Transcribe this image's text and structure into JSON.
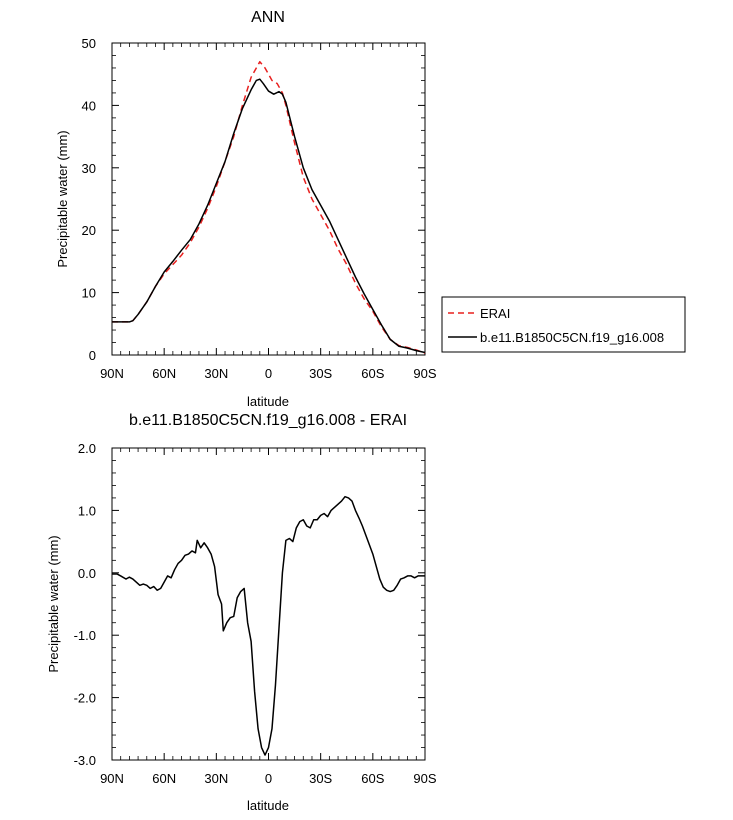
{
  "chart_data": [
    {
      "type": "line",
      "title": "ANN",
      "xlabel": "latitude",
      "ylabel": "Precipitable water (mm)",
      "xlim": [
        90,
        -90
      ],
      "ylim": [
        0,
        50
      ],
      "x_ticks": [
        90,
        60,
        30,
        0,
        -30,
        -60,
        -90
      ],
      "x_tick_labels": [
        "90N",
        "60N",
        "30N",
        "0",
        "30S",
        "60S",
        "90S"
      ],
      "y_ticks": [
        0,
        10,
        20,
        30,
        40,
        50
      ],
      "y_tick_labels": [
        "0",
        "10",
        "20",
        "30",
        "40",
        "50"
      ],
      "grid": false,
      "legend_position": "right",
      "series": [
        {
          "name": "ERAI",
          "color": "#e8201f",
          "dash": "dashed",
          "x": [
            90,
            85,
            80,
            78,
            75,
            70,
            65,
            60,
            55,
            50,
            45,
            40,
            35,
            30,
            25,
            20,
            15,
            10,
            5,
            2,
            0,
            -2,
            -5,
            -8,
            -10,
            -15,
            -20,
            -25,
            -30,
            -35,
            -40,
            -45,
            -50,
            -55,
            -60,
            -65,
            -70,
            -75,
            -80,
            -85,
            -90
          ],
          "y": [
            5.3,
            5.3,
            5.3,
            5.5,
            6.5,
            8.5,
            11.0,
            13.0,
            14.5,
            16.0,
            18.0,
            20.5,
            23.5,
            27.0,
            31.0,
            35.0,
            40.0,
            44.5,
            47.0,
            46.0,
            45.0,
            44.0,
            43.5,
            42.0,
            40.0,
            34.0,
            28.5,
            25.0,
            22.5,
            20.0,
            17.0,
            14.5,
            11.5,
            9.0,
            7.0,
            4.5,
            2.5,
            1.5,
            1.2,
            0.8,
            0.3
          ]
        },
        {
          "name": "b.e11.B1850C5CN.f19_g16.008",
          "color": "#000000",
          "dash": "solid",
          "x": [
            90,
            85,
            80,
            78,
            75,
            70,
            65,
            60,
            55,
            50,
            45,
            40,
            35,
            30,
            25,
            20,
            15,
            10,
            7,
            5,
            3,
            0,
            -3,
            -6,
            -8,
            -10,
            -15,
            -20,
            -25,
            -30,
            -35,
            -40,
            -45,
            -50,
            -55,
            -60,
            -65,
            -70,
            -75,
            -80,
            -85,
            -90
          ],
          "y": [
            5.3,
            5.3,
            5.3,
            5.5,
            6.5,
            8.5,
            11.0,
            13.3,
            15.0,
            16.8,
            18.5,
            21.0,
            24.0,
            27.5,
            31.0,
            35.5,
            39.5,
            42.5,
            44.0,
            44.2,
            43.5,
            42.3,
            41.8,
            42.2,
            41.8,
            40.5,
            35.0,
            30.0,
            26.5,
            24.0,
            21.5,
            18.5,
            15.5,
            12.5,
            9.8,
            7.3,
            4.8,
            2.5,
            1.4,
            1.1,
            0.7,
            0.4
          ]
        }
      ]
    },
    {
      "type": "line",
      "title": "b.e11.B1850C5CN.f19_g16.008 - ERAI",
      "xlabel": "latitude",
      "ylabel": "Precipitable water (mm)",
      "xlim": [
        90,
        -90
      ],
      "ylim": [
        -3.0,
        2.0
      ],
      "x_ticks": [
        90,
        60,
        30,
        0,
        -30,
        -60,
        -90
      ],
      "x_tick_labels": [
        "90N",
        "60N",
        "30N",
        "0",
        "30S",
        "60S",
        "90S"
      ],
      "y_ticks": [
        -3,
        -2,
        -1,
        0,
        1,
        2
      ],
      "y_tick_labels": [
        "-3.0",
        "-2.0",
        "-1.0",
        "0.0",
        "1.0",
        "2.0"
      ],
      "grid": false,
      "series": [
        {
          "name": "",
          "color": "#000000",
          "dash": "solid",
          "x": [
            90,
            87,
            85,
            82,
            80,
            78,
            76,
            74,
            72,
            70,
            68,
            66,
            64,
            62,
            60,
            58,
            56,
            54,
            52,
            50,
            48,
            46,
            44,
            42,
            41,
            39,
            37,
            35,
            33,
            31,
            29,
            27,
            26,
            24,
            22,
            20,
            18,
            16,
            14,
            12,
            10,
            8,
            6,
            4,
            2,
            0,
            -1,
            -2,
            -4,
            -6,
            -8,
            -10,
            -12,
            -14,
            -16,
            -18,
            -20,
            -22,
            -24,
            -26,
            -28,
            -30,
            -32,
            -34,
            -36,
            -38,
            -40,
            -42,
            -44,
            -46,
            -48,
            -50,
            -52,
            -54,
            -56,
            -58,
            -60,
            -62,
            -64,
            -66,
            -68,
            -70,
            -72,
            -74,
            -76,
            -78,
            -80,
            -82,
            -84,
            -86,
            -88,
            -90
          ],
          "y": [
            -0.02,
            -0.02,
            -0.05,
            -0.1,
            -0.07,
            -0.1,
            -0.15,
            -0.2,
            -0.18,
            -0.2,
            -0.25,
            -0.22,
            -0.28,
            -0.25,
            -0.15,
            -0.05,
            -0.08,
            0.05,
            0.15,
            0.2,
            0.28,
            0.3,
            0.35,
            0.32,
            0.52,
            0.4,
            0.48,
            0.4,
            0.3,
            0.1,
            -0.35,
            -0.5,
            -0.93,
            -0.8,
            -0.72,
            -0.7,
            -0.4,
            -0.3,
            -0.25,
            -0.8,
            -1.1,
            -1.9,
            -2.5,
            -2.8,
            -2.92,
            -2.8,
            -2.65,
            -2.5,
            -1.8,
            -0.9,
            0.0,
            0.52,
            0.55,
            0.5,
            0.72,
            0.82,
            0.85,
            0.75,
            0.72,
            0.85,
            0.85,
            0.92,
            0.95,
            0.9,
            1.0,
            1.05,
            1.1,
            1.15,
            1.22,
            1.2,
            1.15,
            1.0,
            0.88,
            0.75,
            0.6,
            0.45,
            0.3,
            0.1,
            -0.1,
            -0.23,
            -0.28,
            -0.3,
            -0.28,
            -0.2,
            -0.1,
            -0.08,
            -0.05,
            -0.05,
            -0.08,
            -0.05,
            -0.05,
            -0.05
          ]
        }
      ]
    }
  ]
}
